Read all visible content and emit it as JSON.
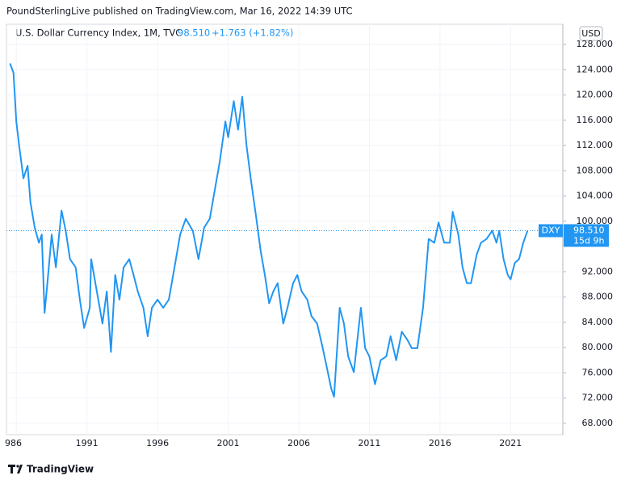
{
  "chart_data": {
    "type": "line",
    "publisher": "PoundSterlingLive published on TradingView.com, Mar 16, 2022 14:39 UTC",
    "title": "U.S. Dollar Currency Index, 1M, TVC",
    "header_price": "98.510",
    "header_change": "+1.763 (+1.82%)",
    "currency": "USD",
    "logo": "TradingView",
    "last_price": {
      "name": "DXY",
      "value": 98.51,
      "label": "98.510",
      "countdown": "15d 9h"
    },
    "x": [
      1985.55,
      1985.8,
      1986.0,
      1986.2,
      1986.5,
      1986.8,
      1987.0,
      1987.3,
      1987.6,
      1987.8,
      1988.0,
      1988.2,
      1988.5,
      1988.8,
      1989.2,
      1989.5,
      1989.8,
      1990.2,
      1990.5,
      1990.8,
      1991.2,
      1991.3,
      1991.8,
      1992.1,
      1992.4,
      1992.7,
      1993.0,
      1993.3,
      1993.6,
      1994.0,
      1994.3,
      1994.6,
      1995.0,
      1995.3,
      1995.6,
      1996.0,
      1996.4,
      1996.8,
      1997.2,
      1997.6,
      1998.0,
      1998.5,
      1998.9,
      1999.3,
      1999.7,
      2000.0,
      2000.4,
      2000.8,
      2001.0,
      2001.4,
      2001.7,
      2002.0,
      2002.3,
      2002.6,
      2003.0,
      2003.3,
      2003.6,
      2003.9,
      2004.2,
      2004.5,
      2004.9,
      2005.2,
      2005.6,
      2005.9,
      2006.2,
      2006.6,
      2006.9,
      2007.3,
      2007.7,
      2008.0,
      2008.3,
      2008.5,
      2008.9,
      2009.2,
      2009.5,
      2009.9,
      2010.4,
      2010.7,
      2011.0,
      2011.4,
      2011.8,
      2012.2,
      2012.5,
      2012.9,
      2013.3,
      2013.7,
      2014.0,
      2014.4,
      2014.8,
      2015.2,
      2015.6,
      2015.9,
      2016.3,
      2016.7,
      2016.9,
      2017.3,
      2017.6,
      2017.9,
      2018.2,
      2018.6,
      2018.9,
      2019.3,
      2019.7,
      2020.0,
      2020.2,
      2020.5,
      2020.8,
      2021.0,
      2021.3,
      2021.6,
      2021.9,
      2022.2
    ],
    "series": [
      {
        "name": "DXY",
        "color": "#2196f3",
        "values": [
          125,
          123.5,
          115.8,
          112,
          106.8,
          108.8,
          103,
          99,
          96.6,
          97.9,
          85.5,
          90.2,
          97.9,
          92.7,
          101.7,
          98.5,
          94,
          92.7,
          87.6,
          83.1,
          86.3,
          94,
          87.6,
          83.8,
          88.9,
          79.3,
          91.5,
          87.6,
          92.7,
          94,
          91.5,
          88.9,
          86.3,
          81.8,
          86.3,
          87.6,
          86.3,
          87.6,
          92.7,
          97.9,
          100.4,
          98.5,
          94,
          99,
          100.4,
          104.3,
          109.4,
          115.8,
          113.3,
          119,
          114.5,
          119.7,
          112,
          106.8,
          100.4,
          95.3,
          91.5,
          87,
          88.9,
          90.2,
          83.8,
          86.3,
          90.2,
          91.5,
          88.9,
          87.6,
          85,
          83.8,
          79.9,
          76.7,
          73.5,
          72.2,
          86.3,
          83.8,
          78.6,
          76.1,
          86.3,
          79.9,
          78.6,
          74.2,
          78,
          78.6,
          81.8,
          78,
          82.5,
          81.2,
          79.9,
          79.9,
          86.3,
          97.2,
          96.6,
          99.8,
          96.6,
          96.6,
          101.5,
          97.9,
          92.7,
          90.2,
          90.2,
          94.7,
          96.6,
          97.2,
          98.5,
          96.6,
          98.5,
          94,
          91.5,
          90.8,
          93.4,
          94,
          96.6,
          98.5
        ]
      }
    ],
    "xlim": [
      1985.3,
      2024.7
    ],
    "ylim": [
      66.2,
      131.2
    ],
    "xticks": [
      {
        "value": 1986,
        "label": "986"
      },
      1991,
      1996,
      2001,
      2006,
      2011,
      2016,
      2021
    ],
    "yticks": [
      {
        "value": 68,
        "label": "68.000"
      },
      {
        "value": 72,
        "label": "72.000"
      },
      {
        "value": 76,
        "label": "76.000"
      },
      {
        "value": 80,
        "label": "80.000"
      },
      {
        "value": 84,
        "label": "84.000"
      },
      {
        "value": 88,
        "label": "88.000"
      },
      {
        "value": 92,
        "label": "92.000"
      },
      {
        "value": 100,
        "label": "100.000"
      },
      {
        "value": 104,
        "label": "104.000"
      },
      {
        "value": 108,
        "label": "108.000"
      },
      {
        "value": 112,
        "label": "112.000"
      },
      {
        "value": 116,
        "label": "116.000"
      },
      {
        "value": 120,
        "label": "120.000"
      },
      {
        "value": 124,
        "label": "124.000"
      },
      {
        "value": 128,
        "label": "128.000"
      }
    ],
    "grid": true
  }
}
